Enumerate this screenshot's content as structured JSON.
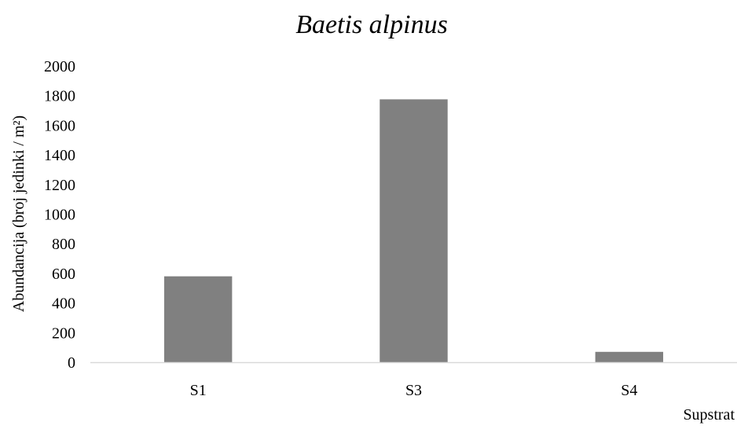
{
  "chart_data": {
    "type": "bar",
    "title": "Baetis alpinus",
    "xlabel": "Supstrat",
    "ylabel": "Abundancija (broj jedinki / m²)",
    "categories": [
      "S1",
      "S3",
      "S4"
    ],
    "values": [
      580,
      1775,
      70
    ],
    "ylim": [
      0,
      2000
    ],
    "yticks": [
      "0",
      "200",
      "400",
      "600",
      "800",
      "1000",
      "1200",
      "1400",
      "1600",
      "1800",
      "2000"
    ],
    "grid": false,
    "legend": "none",
    "bar_color": "#808080",
    "axis_color": "#d9d9d9"
  }
}
